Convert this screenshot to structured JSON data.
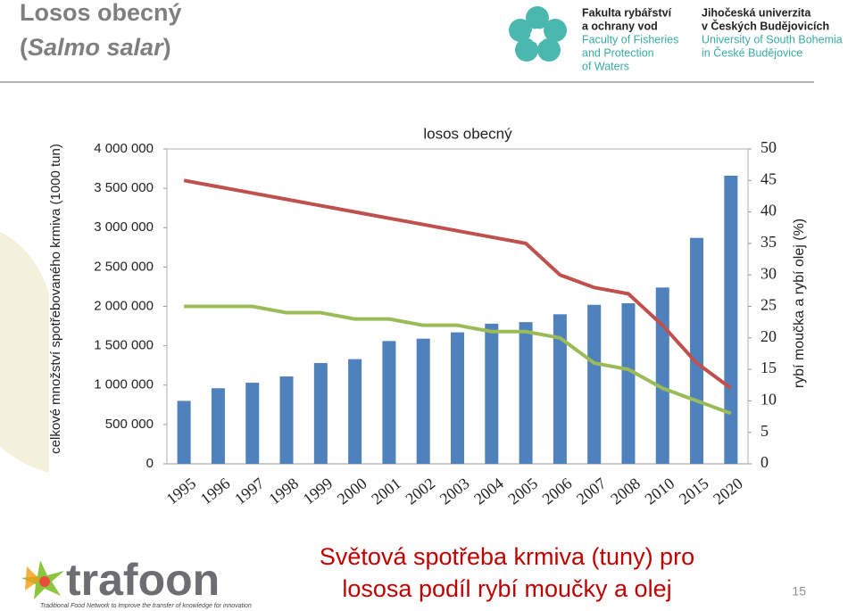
{
  "header": {
    "title_line1": "Losos obecný",
    "title_open": "(",
    "title_italic": "Salmo salar",
    "title_close": ")"
  },
  "faculty_logo": {
    "cz": [
      "Fakulta rybářství",
      "a ochrany vod"
    ],
    "en": [
      "Faculty of Fisheries",
      "and Protection",
      "of Waters"
    ]
  },
  "university_logo": {
    "cz": [
      "Jihočeská univerzita",
      "v Českých Budějovicích"
    ],
    "en": [
      "University of South Bohemia",
      "in České Budějovice"
    ]
  },
  "chart_data": {
    "type": "bar",
    "title": "losos obecný",
    "y_label": "celkové množství spotřebovaného krmiva (1000 tun)",
    "y2_label": "rybí moučka a rybí olej (%)",
    "categories": [
      "1995",
      "1996",
      "1997",
      "1998",
      "1999",
      "2000",
      "2001",
      "2002",
      "2003",
      "2004",
      "2005",
      "2006",
      "2007",
      "2008",
      "2010",
      "2015",
      "2020"
    ],
    "series": [
      {
        "type": "bar",
        "color": "#4f81bd",
        "values": [
          800000,
          960000,
          1030000,
          1110000,
          1280000,
          1330000,
          1560000,
          1590000,
          1670000,
          1780000,
          1800000,
          1900000,
          2020000,
          2040000,
          2240000,
          2870000,
          3660000
        ]
      },
      {
        "type": "line",
        "axis": "y2",
        "color": "#c0504d",
        "values": [
          45,
          44,
          43,
          42,
          41,
          40,
          39,
          38,
          37,
          36,
          35,
          30,
          28,
          27,
          22,
          16,
          12
        ]
      },
      {
        "type": "line",
        "axis": "y2",
        "color": "#9bbb59",
        "values": [
          25,
          25,
          25,
          24,
          24,
          23,
          23,
          22,
          22,
          21,
          21,
          20,
          16,
          15,
          12,
          10,
          8
        ]
      }
    ],
    "ylim": [
      0,
      4000000
    ],
    "yticks": [
      0,
      {
        "value": 500000,
        "label": "500 000"
      },
      {
        "value": 1000000,
        "label": "1 000 000"
      },
      {
        "value": 1500000,
        "label": "1 500 000"
      },
      {
        "value": 2000000,
        "label": "2 000 000"
      },
      {
        "value": 2500000,
        "label": "2 500 000"
      },
      {
        "value": 3000000,
        "label": "3 000 000"
      },
      {
        "value": 3500000,
        "label": "3 500 000"
      },
      {
        "value": 4000000,
        "label": "4 000 000"
      }
    ],
    "y2lim": [
      0,
      50
    ],
    "y2ticks": [
      0,
      5,
      10,
      15,
      20,
      25,
      30,
      35,
      40,
      45,
      50
    ]
  },
  "caption": [
    "Světová spotřeba krmiva (tuny) pro",
    "lososa podíl rybí moučky a olej"
  ],
  "footer": {
    "brand": "trafoon",
    "tagline": "Traditional Food Network to improve the transfer of knowledge for innovation",
    "page": "15"
  }
}
